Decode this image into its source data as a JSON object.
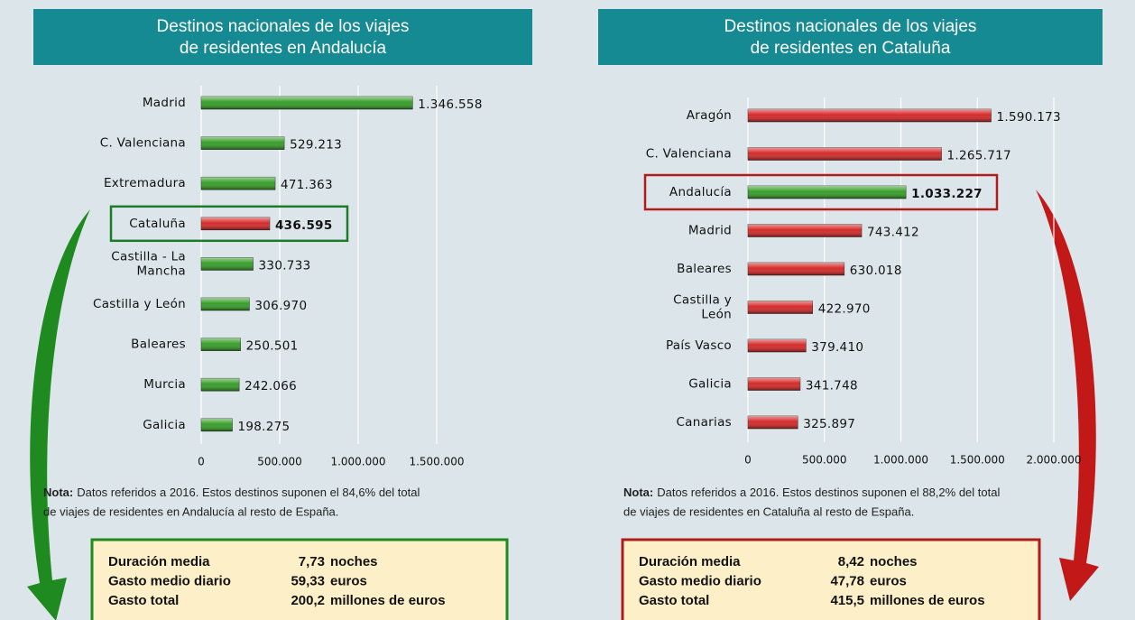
{
  "chart_data": [
    {
      "type": "bar",
      "title": [
        "Destinos nacionales de los viajes",
        "de residentes en Andalucía"
      ],
      "categories": [
        "Madrid",
        "C. Valenciana",
        "Extremadura",
        "Cataluña",
        "Castilla - La\nMancha",
        "Castilla y León",
        "Baleares",
        "Murcia",
        "Galicia"
      ],
      "values": [
        1346558,
        529213,
        471363,
        436595,
        330733,
        306970,
        250501,
        242066,
        198275
      ],
      "value_labels": [
        "1.346.558",
        "529.213",
        "471.363",
        "436.595",
        "330.733",
        "306.970",
        "250.501",
        "242.066",
        "198.275"
      ],
      "color": "#2e9a1f",
      "highlight_color": "#d42020",
      "highlight": 3,
      "highlight_border": "#1f7a2a",
      "xlim": [
        0,
        1750000
      ],
      "xticks": [
        0,
        {
          "value": 500000,
          "label": "500.000"
        },
        {
          "value": 1000000,
          "label": "1.000.000"
        },
        {
          "value": 1500000,
          "label": "1.500.000"
        }
      ],
      "grid": true,
      "note_label": "Nota:",
      "note": [
        "Datos referidos a 2016. Estos destinos suponen el 84,6% del total",
        "de viajes de residentes en Andalucía al resto de España."
      ],
      "stats": [
        {
          "label": "Duración media",
          "value": "7,73",
          "unit": "noches"
        },
        {
          "label": "Gasto medio diario",
          "value": "59,33",
          "unit": "euros"
        },
        {
          "label": "Gasto total",
          "value": "200,2",
          "unit": "millones de euros"
        }
      ],
      "stats_border": "#1f8a1f"
    },
    {
      "type": "bar",
      "title": [
        "Destinos nacionales de los viajes",
        "de residentes en Cataluña"
      ],
      "categories": [
        "Aragón",
        "C. Valenciana",
        "Andalucía",
        "Madrid",
        "Baleares",
        "Castilla y\nLeón",
        "País Vasco",
        "Galicia",
        "Canarias"
      ],
      "values": [
        1590173,
        1265717,
        1033227,
        743412,
        630018,
        422970,
        379410,
        341748,
        325897
      ],
      "value_labels": [
        "1.590.173",
        "1.265.717",
        "1.033.227",
        "743.412",
        "630.018",
        "422.970",
        "379.410",
        "341.748",
        "325.897"
      ],
      "color": "#d42020",
      "highlight_color": "#2e9a1f",
      "highlight": 2,
      "highlight_border": "#b01c1c",
      "xlim": [
        0,
        2000000
      ],
      "xticks": [
        0,
        {
          "value": 500000,
          "label": "500.000"
        },
        {
          "value": 1000000,
          "label": "1.000.000"
        },
        {
          "value": 1500000,
          "label": "1.500.000"
        },
        {
          "value": 2000000,
          "label": "2.000.000"
        }
      ],
      "grid": true,
      "note_label": "Nota:",
      "note": [
        "Datos referidos a 2016. Estos destinos suponen el 88,2% del total",
        "de viajes de residentes en Cataluña al resto de España."
      ],
      "stats": [
        {
          "label": "Duración media",
          "value": "8,42",
          "unit": "noches"
        },
        {
          "label": "Gasto medio diario",
          "value": "47,78",
          "unit": "euros"
        },
        {
          "label": "Gasto total",
          "value": "415,5",
          "unit": "millones de euros"
        }
      ],
      "stats_border": "#b01c1c"
    }
  ]
}
